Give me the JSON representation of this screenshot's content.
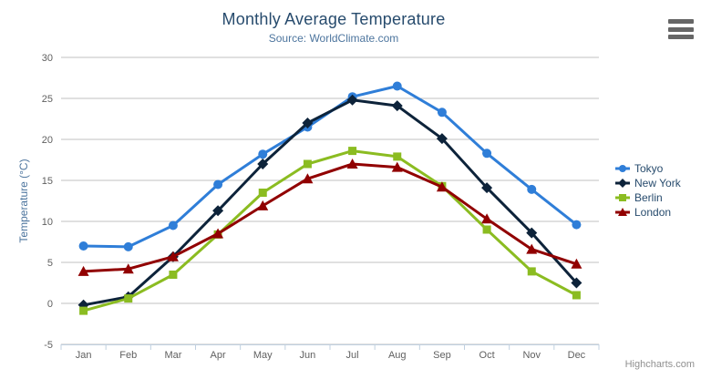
{
  "header": {
    "title": "Monthly Average Temperature",
    "subtitle": "Source: WorldClimate.com"
  },
  "export_menu": {
    "icon": "hamburger-icon"
  },
  "credits": {
    "label": "Highcharts.com"
  },
  "colors": {
    "title": "#274b6d",
    "subtitle": "#4d759e",
    "axis_label": "#606060",
    "axis_title": "#4d759e",
    "grid_line": "#C0C0C0",
    "axis_line": "#C0D0E0",
    "legend_text": "#274b6d",
    "credits_text": "#909090",
    "menu_icon": "#666666"
  },
  "chart_data": {
    "type": "line",
    "title": "Monthly Average Temperature",
    "subtitle": "Source: WorldClimate.com",
    "xlabel": "",
    "ylabel": "Temperature (°C)",
    "ylim": [
      -5,
      30
    ],
    "ytick_step": 5,
    "grid": true,
    "legend_position": "right",
    "categories": [
      "Jan",
      "Feb",
      "Mar",
      "Apr",
      "May",
      "Jun",
      "Jul",
      "Aug",
      "Sep",
      "Oct",
      "Nov",
      "Dec"
    ],
    "series": [
      {
        "name": "Tokyo",
        "color": "#2f7ed8",
        "marker": "circle",
        "values": [
          7.0,
          6.9,
          9.5,
          14.5,
          18.2,
          21.5,
          25.2,
          26.5,
          23.3,
          18.3,
          13.9,
          9.6
        ]
      },
      {
        "name": "New York",
        "color": "#0d233a",
        "marker": "diamond",
        "values": [
          -0.2,
          0.8,
          5.7,
          11.3,
          17.0,
          22.0,
          24.8,
          24.1,
          20.1,
          14.1,
          8.6,
          2.5
        ]
      },
      {
        "name": "Berlin",
        "color": "#8bbc21",
        "marker": "square",
        "values": [
          -0.9,
          0.6,
          3.5,
          8.4,
          13.5,
          17.0,
          18.6,
          17.9,
          14.3,
          9.0,
          3.9,
          1.0
        ]
      },
      {
        "name": "London",
        "color": "#910000",
        "marker": "triangle",
        "values": [
          3.9,
          4.2,
          5.7,
          8.5,
          11.9,
          15.2,
          17.0,
          16.6,
          14.2,
          10.3,
          6.6,
          4.8
        ]
      }
    ]
  }
}
